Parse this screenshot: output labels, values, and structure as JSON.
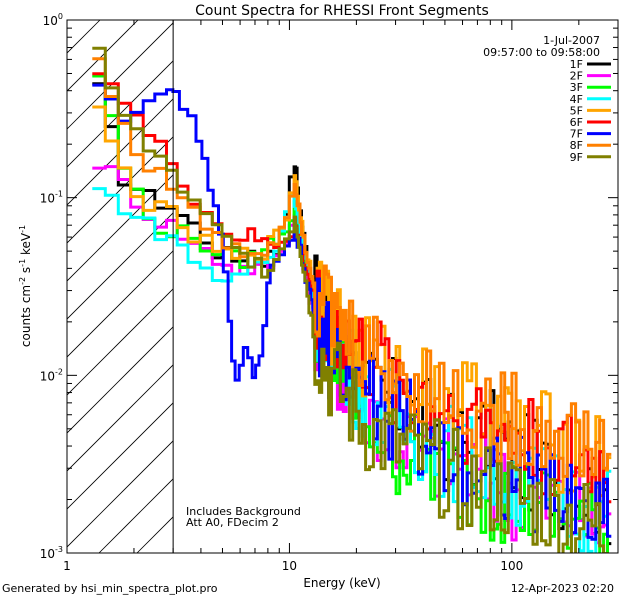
{
  "chart_data": {
    "type": "line",
    "title": "Count Spectra for RHESSI Front Segments",
    "xlabel": "Energy (keV)",
    "ylabel_parts": [
      "counts cm",
      "-2",
      " s",
      "-1",
      " keV",
      "-1"
    ],
    "xscale": "log",
    "yscale": "log",
    "xlim": [
      1,
      300
    ],
    "ylim": [
      0.001,
      1.0
    ],
    "x_tick_labels": [
      "1",
      "10",
      "100"
    ],
    "y_tick_labels": [
      {
        "base": "10",
        "exp": "0"
      },
      {
        "base": "10",
        "exp": "-1"
      },
      {
        "base": "10",
        "exp": "-2"
      },
      {
        "base": "10",
        "exp": "-3"
      }
    ],
    "shaded_region_x": [
      1,
      3
    ],
    "legend_position": "top-right",
    "date": "1-Jul-2007",
    "time_range": "09:57:00 to 09:58:00",
    "annotations": [
      "Includes Background",
      "Att A0, FDecim 2"
    ],
    "series": [
      {
        "name": "1F",
        "color": "#000000",
        "points": [
          [
            1.3,
            0.4
          ],
          [
            1.7,
            0.13
          ],
          [
            2.2,
            0.1
          ],
          [
            2.8,
            0.09
          ],
          [
            3.5,
            0.07
          ],
          [
            4.5,
            0.05
          ],
          [
            5.5,
            0.045
          ],
          [
            6.5,
            0.05
          ],
          [
            7.5,
            0.045
          ],
          [
            8.5,
            0.05
          ],
          [
            9.5,
            0.09
          ],
          [
            10.5,
            0.16
          ],
          [
            11.5,
            0.06
          ],
          [
            13,
            0.025
          ],
          [
            15,
            0.018
          ],
          [
            18,
            0.012
          ],
          [
            22,
            0.008
          ],
          [
            28,
            0.007
          ],
          [
            35,
            0.006
          ],
          [
            45,
            0.005
          ],
          [
            60,
            0.004
          ],
          [
            80,
            0.0045
          ],
          [
            100,
            0.0035
          ],
          [
            130,
            0.003
          ],
          [
            170,
            0.0025
          ],
          [
            220,
            0.0022
          ],
          [
            280,
            0.002
          ]
        ]
      },
      {
        "name": "2F",
        "color": "#ff00ff",
        "points": [
          [
            1.3,
            0.16
          ],
          [
            1.7,
            0.12
          ],
          [
            2.2,
            0.08
          ],
          [
            2.8,
            0.07
          ],
          [
            3.5,
            0.055
          ],
          [
            4.5,
            0.045
          ],
          [
            5.5,
            0.04
          ],
          [
            6.5,
            0.04
          ],
          [
            7.5,
            0.04
          ],
          [
            8.5,
            0.045
          ],
          [
            9.5,
            0.06
          ],
          [
            10.5,
            0.08
          ],
          [
            11.5,
            0.04
          ],
          [
            13,
            0.02
          ],
          [
            15,
            0.014
          ],
          [
            18,
            0.009
          ],
          [
            22,
            0.007
          ],
          [
            28,
            0.005
          ],
          [
            35,
            0.004
          ],
          [
            45,
            0.0035
          ],
          [
            60,
            0.003
          ],
          [
            80,
            0.0025
          ],
          [
            100,
            0.0022
          ],
          [
            130,
            0.002
          ],
          [
            170,
            0.0018
          ],
          [
            220,
            0.0015
          ],
          [
            280,
            0.0013
          ]
        ]
      },
      {
        "name": "3F",
        "color": "#00ff00",
        "points": [
          [
            1.3,
            0.5
          ],
          [
            1.7,
            0.15
          ],
          [
            2.2,
            0.075
          ],
          [
            2.8,
            0.065
          ],
          [
            3.5,
            0.06
          ],
          [
            4.5,
            0.05
          ],
          [
            5.5,
            0.045
          ],
          [
            6.5,
            0.045
          ],
          [
            7.5,
            0.05
          ],
          [
            8.5,
            0.06
          ],
          [
            9.5,
            0.07
          ],
          [
            10.5,
            0.09
          ],
          [
            11.5,
            0.05
          ],
          [
            13,
            0.022
          ],
          [
            15,
            0.014
          ],
          [
            18,
            0.009
          ],
          [
            22,
            0.006
          ],
          [
            28,
            0.004
          ],
          [
            35,
            0.0035
          ],
          [
            45,
            0.003
          ],
          [
            60,
            0.0025
          ],
          [
            80,
            0.0022
          ],
          [
            100,
            0.002
          ],
          [
            130,
            0.0018
          ],
          [
            170,
            0.0015
          ],
          [
            220,
            0.0014
          ],
          [
            280,
            0.0012
          ]
        ]
      },
      {
        "name": "4F",
        "color": "#00ffff",
        "points": [
          [
            1.3,
            0.11
          ],
          [
            1.7,
            0.09
          ],
          [
            2.2,
            0.07
          ],
          [
            2.8,
            0.06
          ],
          [
            3.5,
            0.045
          ],
          [
            4.5,
            0.035
          ],
          [
            5.5,
            0.035
          ],
          [
            6.5,
            0.04
          ],
          [
            7.5,
            0.045
          ],
          [
            8.5,
            0.05
          ],
          [
            9.5,
            0.09
          ],
          [
            10.5,
            0.1
          ],
          [
            11.5,
            0.05
          ],
          [
            13,
            0.022
          ],
          [
            15,
            0.016
          ],
          [
            18,
            0.011
          ],
          [
            22,
            0.008
          ],
          [
            28,
            0.006
          ],
          [
            35,
            0.005
          ],
          [
            45,
            0.004
          ],
          [
            60,
            0.0035
          ],
          [
            80,
            0.003
          ],
          [
            100,
            0.0026
          ],
          [
            130,
            0.0023
          ],
          [
            170,
            0.002
          ],
          [
            220,
            0.0018
          ],
          [
            280,
            0.0016
          ]
        ]
      },
      {
        "name": "5F",
        "color": "#ffa500",
        "points": [
          [
            1.3,
            0.3
          ],
          [
            1.7,
            0.14
          ],
          [
            2.2,
            0.09
          ],
          [
            2.8,
            0.08
          ],
          [
            3.5,
            0.06
          ],
          [
            4.5,
            0.05
          ],
          [
            5.5,
            0.045
          ],
          [
            6.5,
            0.05
          ],
          [
            7.5,
            0.05
          ],
          [
            8.5,
            0.06
          ],
          [
            9.5,
            0.08
          ],
          [
            10.5,
            0.14
          ],
          [
            11.5,
            0.06
          ],
          [
            13,
            0.03
          ],
          [
            15,
            0.022
          ],
          [
            18,
            0.016
          ],
          [
            22,
            0.012
          ],
          [
            28,
            0.01
          ],
          [
            35,
            0.009
          ],
          [
            45,
            0.008
          ],
          [
            60,
            0.007
          ],
          [
            80,
            0.006
          ],
          [
            100,
            0.005
          ],
          [
            130,
            0.0045
          ],
          [
            170,
            0.004
          ],
          [
            220,
            0.0035
          ],
          [
            280,
            0.003
          ]
        ]
      },
      {
        "name": "6F",
        "color": "#ff0000",
        "points": [
          [
            1.3,
            0.55
          ],
          [
            1.7,
            0.35
          ],
          [
            2.2,
            0.22
          ],
          [
            2.8,
            0.16
          ],
          [
            3.5,
            0.1
          ],
          [
            4.5,
            0.07
          ],
          [
            5.5,
            0.06
          ],
          [
            6.5,
            0.06
          ],
          [
            7.5,
            0.055
          ],
          [
            8.5,
            0.055
          ],
          [
            9.5,
            0.06
          ],
          [
            10.5,
            0.07
          ],
          [
            11.5,
            0.045
          ],
          [
            13,
            0.025
          ],
          [
            15,
            0.02
          ],
          [
            18,
            0.015
          ],
          [
            22,
            0.012
          ],
          [
            28,
            0.01
          ],
          [
            35,
            0.008
          ],
          [
            45,
            0.007
          ],
          [
            60,
            0.006
          ],
          [
            80,
            0.005
          ],
          [
            100,
            0.0045
          ],
          [
            130,
            0.004
          ],
          [
            170,
            0.0035
          ],
          [
            220,
            0.003
          ],
          [
            280,
            0.0027
          ]
        ]
      },
      {
        "name": "7F",
        "color": "#0000ff",
        "points": [
          [
            1.3,
            0.45
          ],
          [
            1.7,
            0.3
          ],
          [
            2.2,
            0.32
          ],
          [
            2.8,
            0.38
          ],
          [
            3.2,
            0.35
          ],
          [
            3.8,
            0.2
          ],
          [
            4.3,
            0.12
          ],
          [
            4.8,
            0.06
          ],
          [
            5.3,
            0.02
          ],
          [
            5.7,
            0.009
          ],
          [
            6.2,
            0.015
          ],
          [
            6.8,
            0.009
          ],
          [
            7.3,
            0.012
          ],
          [
            7.9,
            0.035
          ],
          [
            8.5,
            0.04
          ],
          [
            9.5,
            0.05
          ],
          [
            10.5,
            0.07
          ],
          [
            11.5,
            0.04
          ],
          [
            13,
            0.02
          ],
          [
            15,
            0.014
          ],
          [
            18,
            0.01
          ],
          [
            22,
            0.008
          ],
          [
            28,
            0.006
          ],
          [
            35,
            0.005
          ],
          [
            45,
            0.004
          ],
          [
            60,
            0.0035
          ],
          [
            80,
            0.003
          ],
          [
            100,
            0.0026
          ],
          [
            130,
            0.0022
          ],
          [
            170,
            0.002
          ],
          [
            220,
            0.0018
          ],
          [
            280,
            0.0016
          ]
        ]
      },
      {
        "name": "8F",
        "color": "#ff8000",
        "points": [
          [
            1.3,
            0.6
          ],
          [
            1.7,
            0.25
          ],
          [
            2.2,
            0.15
          ],
          [
            2.8,
            0.12
          ],
          [
            3.5,
            0.08
          ],
          [
            4.5,
            0.06
          ],
          [
            5.5,
            0.05
          ],
          [
            6.5,
            0.05
          ],
          [
            7.5,
            0.05
          ],
          [
            8.5,
            0.06
          ],
          [
            9.5,
            0.08
          ],
          [
            10.5,
            0.13
          ],
          [
            11.5,
            0.06
          ],
          [
            13,
            0.03
          ],
          [
            15,
            0.022
          ],
          [
            18,
            0.016
          ],
          [
            22,
            0.013
          ],
          [
            28,
            0.011
          ],
          [
            35,
            0.009
          ],
          [
            45,
            0.008
          ],
          [
            60,
            0.007
          ],
          [
            80,
            0.006
          ],
          [
            100,
            0.0055
          ],
          [
            130,
            0.005
          ],
          [
            170,
            0.0045
          ],
          [
            220,
            0.004
          ],
          [
            280,
            0.0035
          ]
        ]
      },
      {
        "name": "9F",
        "color": "#808000",
        "points": [
          [
            1.3,
            0.65
          ],
          [
            1.7,
            0.3
          ],
          [
            2.2,
            0.18
          ],
          [
            2.8,
            0.14
          ],
          [
            3.5,
            0.09
          ],
          [
            4.5,
            0.065
          ],
          [
            5.5,
            0.05
          ],
          [
            6.5,
            0.045
          ],
          [
            7.5,
            0.04
          ],
          [
            8.5,
            0.045
          ],
          [
            9.5,
            0.06
          ],
          [
            10.5,
            0.08
          ],
          [
            11.5,
            0.04
          ],
          [
            13,
            0.015
          ],
          [
            15,
            0.01
          ],
          [
            18,
            0.007
          ],
          [
            22,
            0.005
          ],
          [
            28,
            0.004
          ],
          [
            35,
            0.0035
          ],
          [
            45,
            0.003
          ],
          [
            60,
            0.0025
          ],
          [
            80,
            0.0022
          ],
          [
            100,
            0.002
          ],
          [
            130,
            0.0018
          ],
          [
            170,
            0.0016
          ],
          [
            220,
            0.0014
          ],
          [
            280,
            0.0012
          ]
        ]
      }
    ]
  },
  "footer": {
    "generated_by": "Generated by hsi_min_spectra_plot.pro",
    "timestamp": "12-Apr-2023 02:20"
  }
}
